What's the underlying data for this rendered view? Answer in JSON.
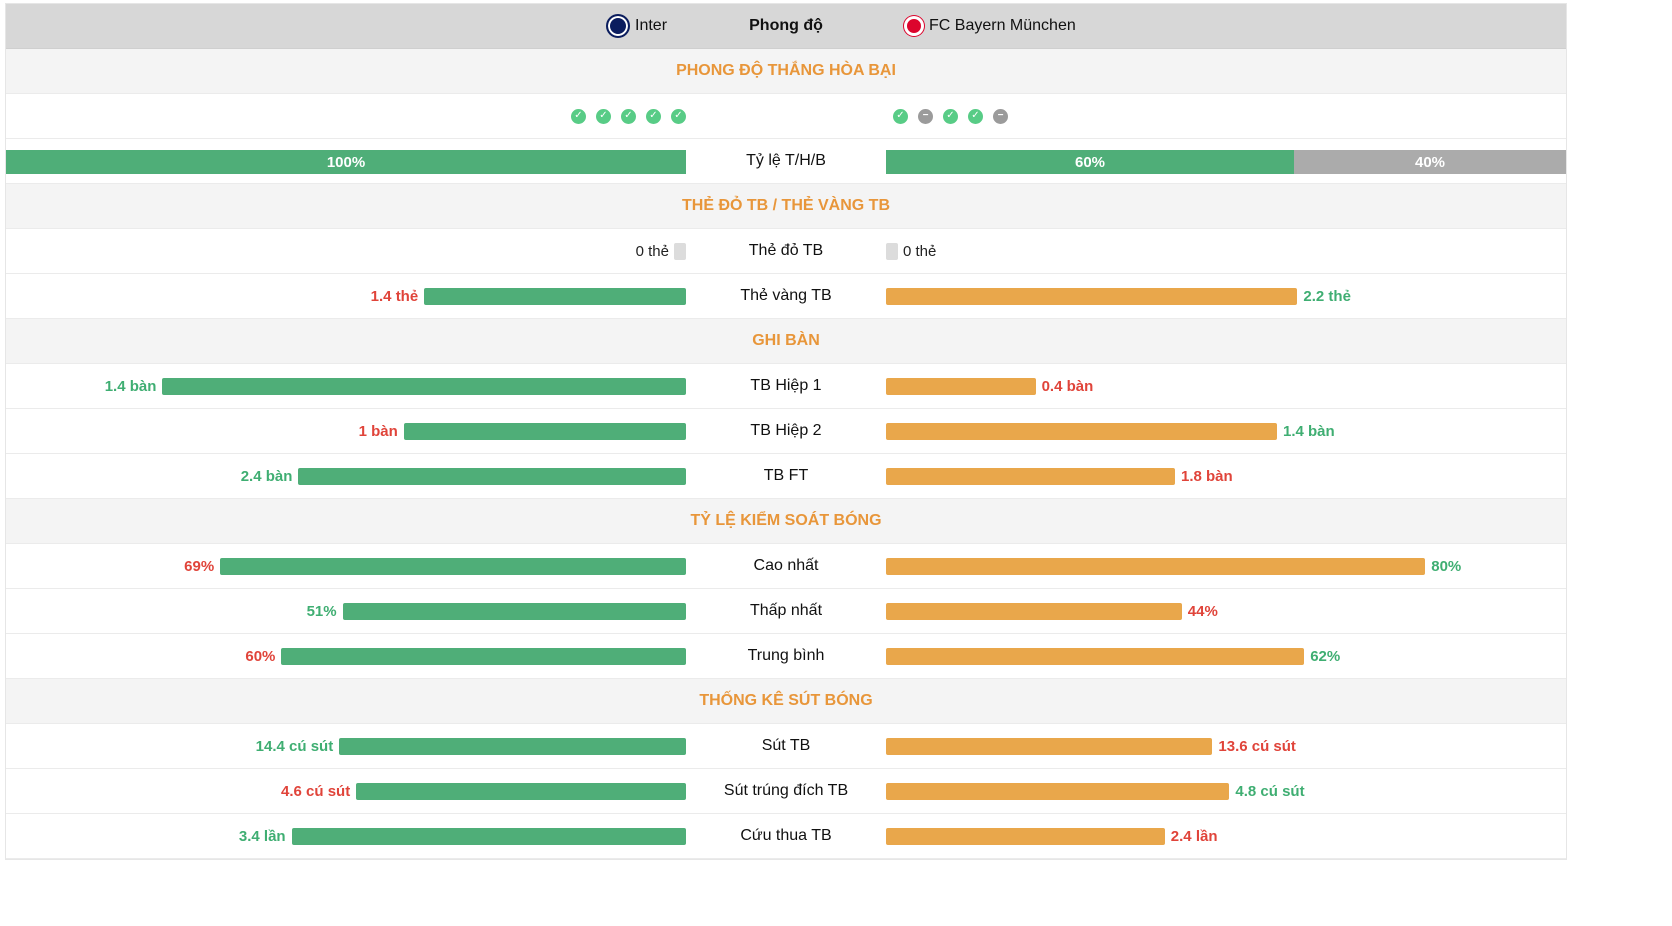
{
  "header": {
    "home_team": "Inter",
    "title": "Phong độ",
    "away_team": "FC Bayern München"
  },
  "form": {
    "section_title": "PHONG ĐỘ THẮNG HÒA BẠI",
    "home": [
      "win",
      "win",
      "win",
      "win",
      "win"
    ],
    "away": [
      "win",
      "draw",
      "win",
      "win",
      "draw"
    ],
    "ratio_label": "Tỷ lệ T/H/B",
    "home_win_pct": 100,
    "home_win_text": "100%",
    "away_win_pct": 60,
    "away_win_text": "60%",
    "away_draw_pct": 40,
    "away_draw_text": "40%"
  },
  "cards": {
    "section_title": "THẺ ĐỎ TB / THẺ VÀNG TB",
    "red_label": "Thẻ đỏ TB",
    "red_home": "0 thẻ",
    "red_away": "0 thẻ",
    "yellow_label": "Thẻ vàng TB",
    "yellow_home": "1.4 thẻ",
    "yellow_away": "2.2 thẻ",
    "yellow_home_pct": 38.5,
    "yellow_away_pct": 60.5
  },
  "goals": {
    "section_title": "GHI BÀN",
    "rows": [
      {
        "label": "TB Hiệp 1",
        "home": "1.4 bàn",
        "away": "0.4 bàn",
        "home_pct": 77,
        "away_pct": 22,
        "home_class": "green",
        "away_class": "red"
      },
      {
        "label": "TB Hiệp 2",
        "home": "1 bàn",
        "away": "1.4 bàn",
        "home_pct": 41.5,
        "away_pct": 57.5,
        "home_class": "red",
        "away_class": "green"
      },
      {
        "label": "TB FT",
        "home": "2.4 bàn",
        "away": "1.8 bàn",
        "home_pct": 57,
        "away_pct": 42.5,
        "home_class": "green",
        "away_class": "red"
      }
    ]
  },
  "possession": {
    "section_title": "TỶ LỆ KIỂM SOÁT BÓNG",
    "rows": [
      {
        "label": "Cao nhất",
        "home": "69%",
        "away": "80%",
        "home_pct": 68.5,
        "away_pct": 79.3,
        "home_class": "red",
        "away_class": "green"
      },
      {
        "label": "Thấp nhất",
        "home": "51%",
        "away": "44%",
        "home_pct": 50.5,
        "away_pct": 43.5,
        "home_class": "green",
        "away_class": "red"
      },
      {
        "label": "Trung bình",
        "home": "60%",
        "away": "62%",
        "home_pct": 59.5,
        "away_pct": 61.5,
        "home_class": "red",
        "away_class": "green"
      }
    ]
  },
  "shots": {
    "section_title": "THỐNG KÊ SÚT BÓNG",
    "rows": [
      {
        "label": "Sút TB",
        "home": "14.4 cú sút",
        "away": "13.6 cú sút",
        "home_pct": 51,
        "away_pct": 48,
        "home_class": "green",
        "away_class": "red"
      },
      {
        "label": "Sút trúng đích TB",
        "home": "4.6 cú sút",
        "away": "4.8 cú sút",
        "home_pct": 48.5,
        "away_pct": 50.5,
        "home_class": "red",
        "away_class": "green"
      },
      {
        "label": "Cứu thua TB",
        "home": "3.4 lần",
        "away": "2.4 lần",
        "home_pct": 58,
        "away_pct": 41,
        "home_class": "green",
        "away_class": "red"
      }
    ]
  }
}
